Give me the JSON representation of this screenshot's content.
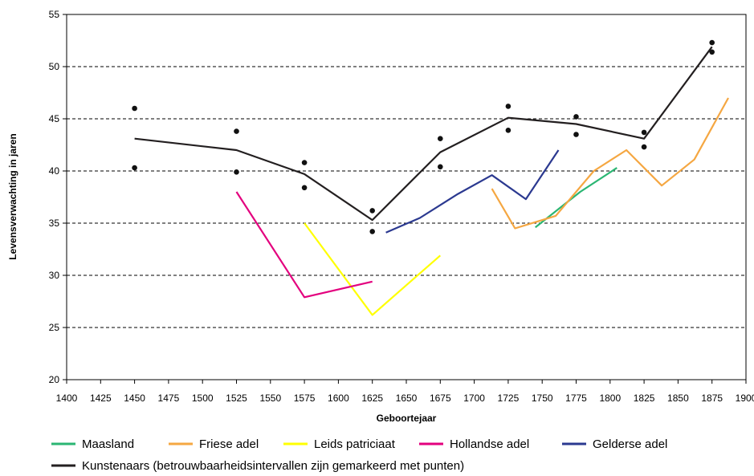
{
  "chart_data": {
    "type": "line",
    "xlabel": "Geboortejaar",
    "ylabel": "Levensverwachting in jaren",
    "xlim": [
      1400,
      1900
    ],
    "ylim": [
      20,
      55
    ],
    "x_ticks": [
      1400,
      1425,
      1450,
      1475,
      1500,
      1525,
      1550,
      1575,
      1600,
      1625,
      1650,
      1675,
      1700,
      1725,
      1750,
      1775,
      1800,
      1825,
      1850,
      1875,
      1900
    ],
    "y_ticks": [
      20,
      25,
      30,
      35,
      40,
      45,
      50,
      55
    ],
    "grid": "horizontal-dashed",
    "legend_position": "bottom",
    "series": [
      {
        "name": "Maasland",
        "color": "#2bb673",
        "points": [
          [
            1745,
            34.6
          ],
          [
            1778,
            38.0
          ],
          [
            1805,
            40.3
          ]
        ]
      },
      {
        "name": "Friese adel",
        "color": "#f5a742",
        "points": [
          [
            1713,
            38.3
          ],
          [
            1730,
            34.5
          ],
          [
            1740,
            34.9
          ],
          [
            1760,
            35.7
          ],
          [
            1788,
            40.0
          ],
          [
            1812,
            42.0
          ],
          [
            1838,
            38.6
          ],
          [
            1862,
            41.1
          ],
          [
            1887,
            47.0
          ]
        ]
      },
      {
        "name": "Leids patriciaat",
        "color": "#ffff00",
        "points": [
          [
            1575,
            35.0
          ],
          [
            1625,
            26.2
          ],
          [
            1675,
            31.9
          ]
        ]
      },
      {
        "name": "Hollandse adel",
        "color": "#e3007e",
        "points": [
          [
            1525,
            38.0
          ],
          [
            1575,
            27.9
          ],
          [
            1625,
            29.4
          ]
        ]
      },
      {
        "name": "Gelderse adel",
        "color": "#2b3990",
        "points": [
          [
            1635,
            34.1
          ],
          [
            1660,
            35.5
          ],
          [
            1688,
            37.8
          ],
          [
            1713,
            39.6
          ],
          [
            1738,
            37.3
          ],
          [
            1762,
            42.0
          ]
        ]
      },
      {
        "name": "Kunstenaars (betrouwbaarheidsintervallen zijn gemarkeerd met punten)",
        "color": "#231f20",
        "points": [
          [
            1450,
            43.1
          ],
          [
            1525,
            42.0
          ],
          [
            1575,
            39.7
          ],
          [
            1625,
            35.3
          ],
          [
            1675,
            41.8
          ],
          [
            1725,
            45.1
          ],
          [
            1775,
            44.5
          ],
          [
            1825,
            43.1
          ],
          [
            1875,
            51.9
          ]
        ]
      }
    ],
    "confidence_points": [
      [
        1450,
        46.0
      ],
      [
        1450,
        40.3
      ],
      [
        1525,
        43.8
      ],
      [
        1525,
        39.9
      ],
      [
        1575,
        40.8
      ],
      [
        1575,
        38.4
      ],
      [
        1625,
        36.2
      ],
      [
        1625,
        34.2
      ],
      [
        1675,
        43.1
      ],
      [
        1675,
        40.4
      ],
      [
        1725,
        46.2
      ],
      [
        1725,
        43.9
      ],
      [
        1775,
        45.2
      ],
      [
        1775,
        43.5
      ],
      [
        1825,
        43.7
      ],
      [
        1825,
        42.3
      ],
      [
        1875,
        52.3
      ],
      [
        1875,
        51.4
      ]
    ]
  }
}
